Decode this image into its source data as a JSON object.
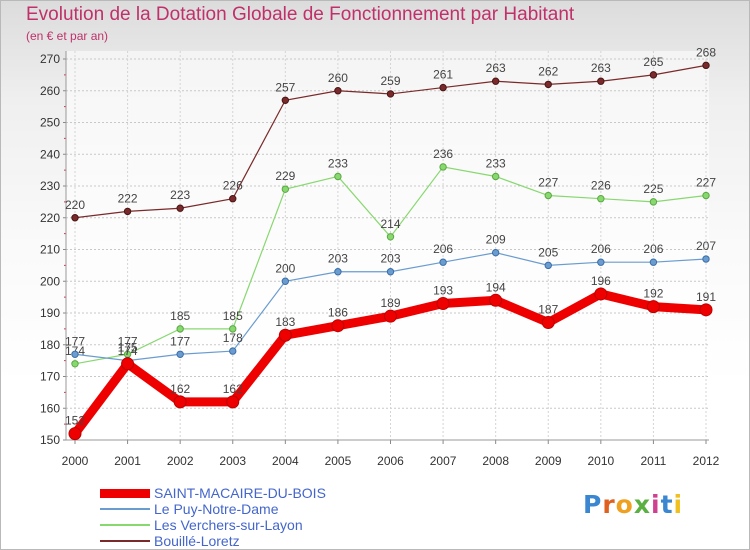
{
  "chart_data": {
    "type": "line",
    "title": "Evolution de la Dotation Globale de Fonctionnement par Habitant",
    "subtitle": "(en € et par an)",
    "x": [
      "2000",
      "2001",
      "2002",
      "2003",
      "2004",
      "2005",
      "2006",
      "2007",
      "2008",
      "2009",
      "2010",
      "2011",
      "2012"
    ],
    "ylim": [
      150,
      270
    ],
    "yticks": [
      150,
      160,
      170,
      180,
      190,
      200,
      210,
      220,
      230,
      240,
      250,
      260,
      270
    ],
    "grid": true,
    "legend_position": "bottom-left",
    "series": [
      {
        "name": "Bouillé-Loretz",
        "color": "#7a2a2a",
        "values": [
          220,
          222,
          223,
          226,
          257,
          260,
          259,
          261,
          263,
          262,
          263,
          265,
          268
        ]
      },
      {
        "name": "Les Verchers-sur-Layon",
        "color": "#88d870",
        "values": [
          174,
          177,
          185,
          185,
          229,
          233,
          214,
          236,
          233,
          227,
          226,
          225,
          227
        ]
      },
      {
        "name": "Le Puy-Notre-Dame",
        "color": "#6a9cd0",
        "values": [
          177,
          175,
          177,
          178,
          200,
          203,
          203,
          206,
          209,
          205,
          206,
          206,
          207
        ]
      },
      {
        "name": "SAINT-MACAIRE-DU-BOIS",
        "color": "#ee0000",
        "values": [
          152,
          174,
          162,
          162,
          183,
          186,
          189,
          193,
          194,
          187,
          196,
          192,
          191
        ]
      }
    ]
  },
  "legend": {
    "items": [
      {
        "label": "SAINT-MACAIRE-DU-BOIS",
        "color": "#ee0000",
        "thick": true
      },
      {
        "label": "Le Puy-Notre-Dame",
        "color": "#6a9cd0",
        "thick": false
      },
      {
        "label": "Les Verchers-sur-Layon",
        "color": "#88d870",
        "thick": false
      },
      {
        "label": "Bouillé-Loretz",
        "color": "#7a2a2a",
        "thick": false
      }
    ]
  },
  "logo": {
    "text": "Proxiti"
  }
}
